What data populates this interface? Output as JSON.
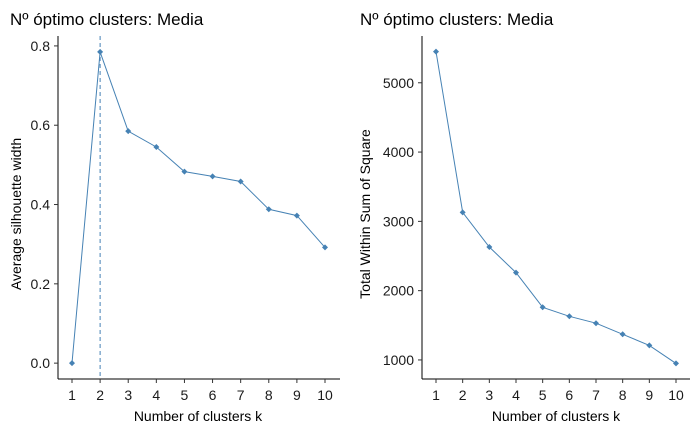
{
  "chart_data": [
    {
      "type": "line",
      "title": "Nº óptimo clusters: Media",
      "xlabel": "Number of clusters k",
      "ylabel": "Average silhouette width",
      "x": [
        1,
        2,
        3,
        4,
        5,
        6,
        7,
        8,
        9,
        10
      ],
      "x_tick_labels": [
        "1",
        "2",
        "3",
        "4",
        "5",
        "6",
        "7",
        "8",
        "9",
        "10"
      ],
      "series": [
        {
          "values": [
            0.0,
            0.785,
            0.585,
            0.545,
            0.483,
            0.471,
            0.458,
            0.388,
            0.372,
            0.292
          ]
        }
      ],
      "y_ticks": [
        0.0,
        0.2,
        0.4,
        0.6,
        0.8
      ],
      "y_tick_labels": [
        "0.0",
        "0.2",
        "0.4",
        "0.6",
        "0.8"
      ],
      "ylim": [
        -0.04,
        0.825
      ],
      "vline_x": 2,
      "color": "#4682B4",
      "grid": false
    },
    {
      "type": "line",
      "title": "Nº óptimo clusters: Media",
      "xlabel": "Number of clusters k",
      "ylabel": "Total Within Sum of Square",
      "x": [
        1,
        2,
        3,
        4,
        5,
        6,
        7,
        8,
        9,
        10
      ],
      "x_tick_labels": [
        "1",
        "2",
        "3",
        "4",
        "5",
        "6",
        "7",
        "8",
        "9",
        "10"
      ],
      "series": [
        {
          "values": [
            5450,
            3130,
            2630,
            2260,
            1760,
            1630,
            1530,
            1370,
            1210,
            950
          ]
        }
      ],
      "y_ticks": [
        1000,
        2000,
        3000,
        4000,
        5000
      ],
      "y_tick_labels": [
        "1000",
        "2000",
        "3000",
        "4000",
        "5000"
      ],
      "ylim": [
        725,
        5675
      ],
      "color": "#4682B4",
      "grid": false
    }
  ]
}
